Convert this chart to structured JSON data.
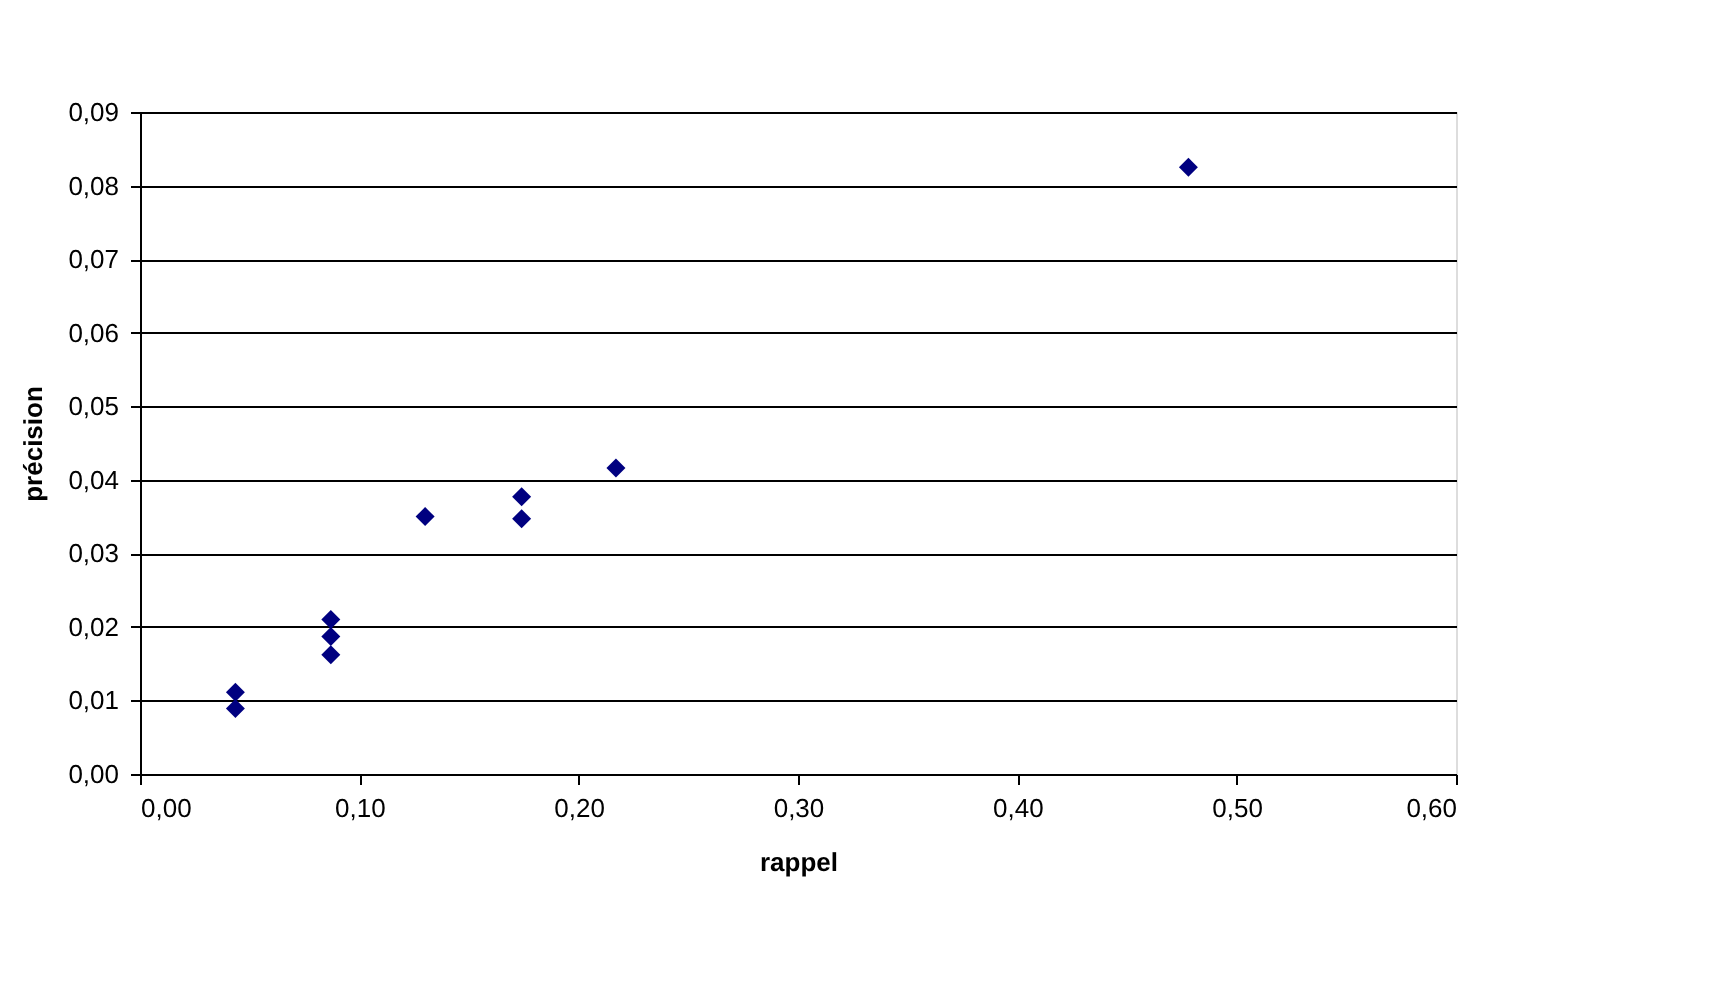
{
  "chart_data": {
    "type": "scatter",
    "xlabel": "rappel",
    "ylabel": "précision",
    "x": [
      0.0435,
      0.0435,
      0.087,
      0.087,
      0.087,
      0.13,
      0.174,
      0.174,
      0.217,
      0.478
    ],
    "series": [
      {
        "color": "#000080",
        "values": [
          0.0111,
          0.0089,
          0.021,
          0.0187,
          0.0162,
          0.035,
          0.0377,
          0.0347,
          0.0416,
          0.0825
        ]
      }
    ],
    "marker": "diamond",
    "grid": "y",
    "legend": false,
    "xlim": [
      0,
      0.6
    ],
    "ylim": [
      0,
      0.09
    ],
    "xticks": [
      {
        "value": 0,
        "label": "0,00"
      },
      {
        "value": 0.1,
        "label": "0,10"
      },
      {
        "value": 0.2,
        "label": "0,20"
      },
      {
        "value": 0.3,
        "label": "0,30"
      },
      {
        "value": 0.4,
        "label": "0,40"
      },
      {
        "value": 0.5,
        "label": "0,50"
      },
      {
        "value": 0.6,
        "label": "0,60"
      }
    ],
    "yticks": [
      {
        "value": 0,
        "label": "0,00"
      },
      {
        "value": 0.01,
        "label": "0,01"
      },
      {
        "value": 0.02,
        "label": "0,02"
      },
      {
        "value": 0.03,
        "label": "0,03"
      },
      {
        "value": 0.04,
        "label": "0,04"
      },
      {
        "value": 0.05,
        "label": "0,05"
      },
      {
        "value": 0.06,
        "label": "0,06"
      },
      {
        "value": 0.07,
        "label": "0,07"
      },
      {
        "value": 0.08,
        "label": "0,08"
      },
      {
        "value": 0.09,
        "label": "0,09"
      }
    ]
  }
}
